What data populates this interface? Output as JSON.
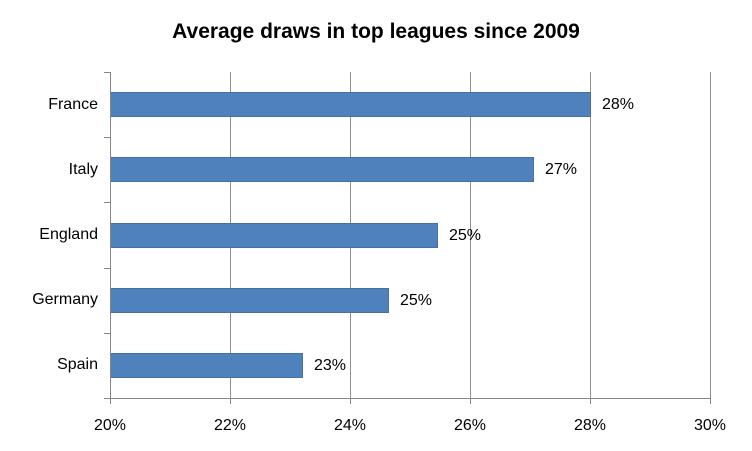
{
  "chart_data": {
    "type": "bar",
    "orientation": "horizontal",
    "title": "Average draws in top leagues since 2009",
    "categories": [
      "France",
      "Italy",
      "England",
      "Germany",
      "Spain"
    ],
    "values": [
      28.0,
      27.05,
      25.45,
      24.63,
      23.2
    ],
    "data_labels": [
      "28%",
      "27%",
      "25%",
      "25%",
      "23%"
    ],
    "x_tick_labels": [
      "20%",
      "22%",
      "24%",
      "26%",
      "28%",
      "30%"
    ],
    "x_tick_values": [
      20,
      22,
      24,
      26,
      28,
      30
    ],
    "xlim": [
      20,
      30
    ],
    "xlabel": "",
    "ylabel": "",
    "legend": "none",
    "grid": "vertical-gridlines",
    "bar_color": "#4F81BD",
    "bar_border_color": "#44719F",
    "axis_color": "#868686",
    "gridline_color": "#909090",
    "text_color": "#000000",
    "background_color": "#FFFFFF"
  }
}
